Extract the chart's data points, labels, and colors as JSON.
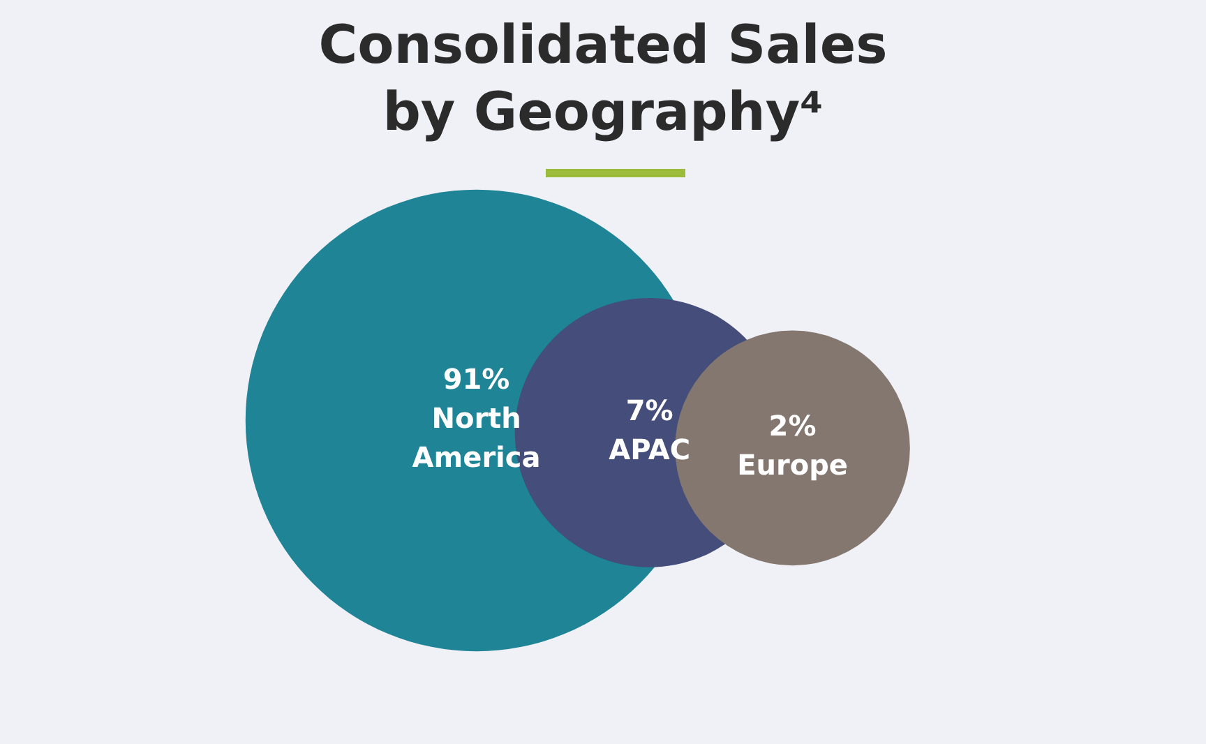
{
  "chart_data": {
    "type": "other",
    "title": "Consolidated Sales by Geography⁴",
    "categories": [
      "North America",
      "APAC",
      "Europe"
    ],
    "values": [
      91,
      7,
      2
    ],
    "value_labels": [
      "91%",
      "7%",
      "2%"
    ],
    "colors": [
      "#1e8496",
      "#454d7a",
      "#837770"
    ]
  }
}
